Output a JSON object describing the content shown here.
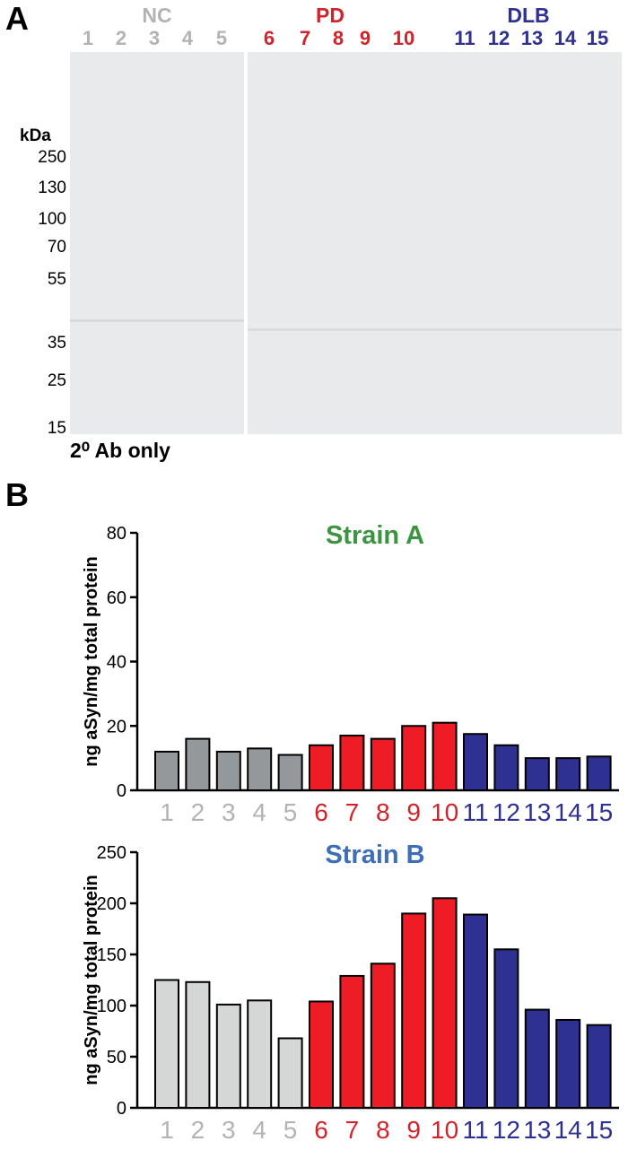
{
  "panel_a": {
    "letter": "A",
    "groups": [
      {
        "label": "NC",
        "color": "#b3b3b3"
      },
      {
        "label": "PD",
        "color": "#d2232a"
      },
      {
        "label": "DLB",
        "color": "#2e3192"
      }
    ],
    "lanes": [
      "1",
      "2",
      "3",
      "4",
      "5",
      "6",
      "7",
      "8",
      "9",
      "10",
      "11",
      "12",
      "13",
      "14",
      "15"
    ],
    "mw_unit": "kDa",
    "mw_markers": [
      "250",
      "130",
      "100",
      "70",
      "55",
      "35",
      "25",
      "15"
    ],
    "footer": "2⁰ Ab only"
  },
  "panel_b": {
    "letter": "B"
  },
  "colors": {
    "nc_light": "#b3b3b3",
    "pd": "#d2232a",
    "dlb": "#2e3192",
    "bar_nc_a": "#95989b",
    "bar_nc_b": "#d4d7d6",
    "bar_pd": "#ee1c24",
    "bar_dlb": "#2e3192",
    "title_a": "#3c9440",
    "title_b": "#3f6eb8"
  },
  "chart_data": [
    {
      "type": "bar",
      "title": "Strain A",
      "ylabel": "ng aSyn/mg total protein",
      "xlabel": "",
      "categories": [
        "1",
        "2",
        "3",
        "4",
        "5",
        "6",
        "7",
        "8",
        "9",
        "10",
        "11",
        "12",
        "13",
        "14",
        "15"
      ],
      "values": [
        12,
        16,
        12,
        13,
        11,
        14,
        17,
        16,
        20,
        21,
        17.5,
        14,
        10,
        10,
        10.5
      ],
      "ylim": [
        0,
        80
      ],
      "yticks": [
        "0",
        "20",
        "40",
        "60",
        "80"
      ],
      "grid": false
    },
    {
      "type": "bar",
      "title": "Strain B",
      "ylabel": "ng aSyn/mg total protein",
      "xlabel": "",
      "categories": [
        "1",
        "2",
        "3",
        "4",
        "5",
        "6",
        "7",
        "8",
        "9",
        "10",
        "11",
        "12",
        "13",
        "14",
        "15"
      ],
      "values": [
        125,
        123,
        101,
        105,
        68,
        104,
        129,
        141,
        190,
        205,
        189,
        155,
        96,
        86,
        81
      ],
      "ylim": [
        0,
        250
      ],
      "yticks": [
        "0",
        "50",
        "100",
        "150",
        "200",
        "250"
      ],
      "grid": false
    }
  ]
}
